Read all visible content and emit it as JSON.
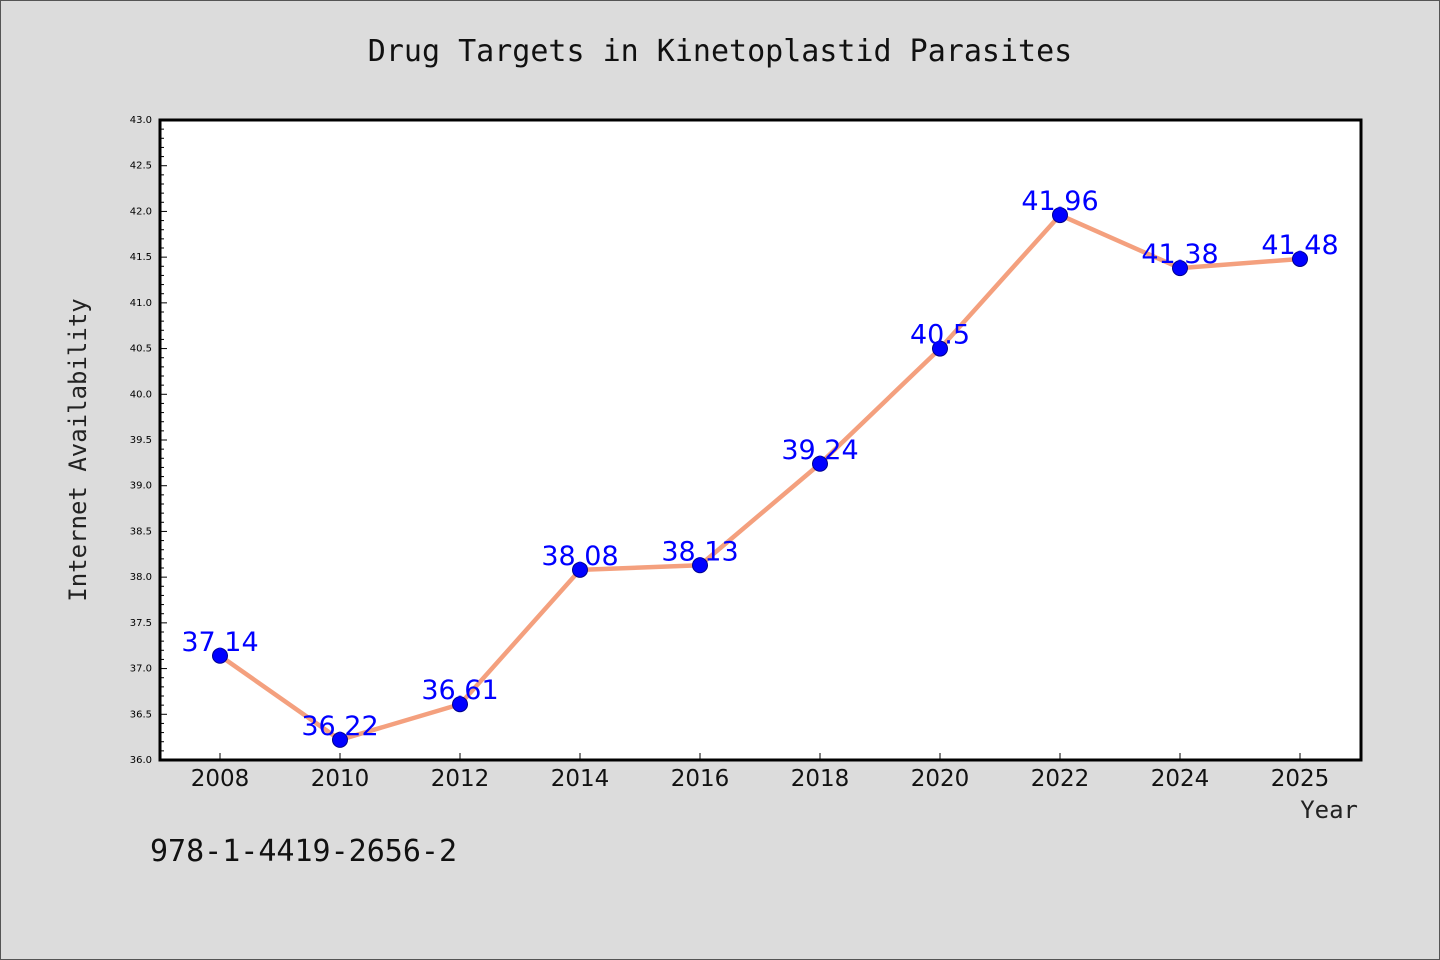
{
  "chart_data": {
    "type": "line",
    "title": "Drug Targets in Kinetoplastid Parasites",
    "xlabel": "Year",
    "ylabel": "Internet Availability",
    "categories": [
      "2008",
      "2010",
      "2012",
      "2014",
      "2016",
      "2018",
      "2020",
      "2022",
      "2024",
      "2025"
    ],
    "values": [
      37.14,
      36.22,
      36.61,
      38.08,
      38.13,
      39.24,
      40.5,
      41.96,
      41.38,
      41.48
    ],
    "data_labels": [
      "37.14",
      "36.22",
      "36.61",
      "38.08",
      "38.13",
      "39.24",
      "40.5",
      "41.96",
      "41.38",
      "41.48"
    ],
    "ylim": [
      36.0,
      43.0
    ],
    "y_ticks": [
      "36.0",
      "36.5",
      "37.0",
      "37.5",
      "38.0",
      "38.5",
      "39.0",
      "39.5",
      "40.0",
      "40.5",
      "41.0",
      "41.5",
      "42.0",
      "42.5",
      "43.0"
    ],
    "grid": false,
    "colors": {
      "line": "#f4a07e",
      "marker": "#0000ff",
      "label": "#0000ff",
      "background": "#dcdcdc",
      "plot_bg": "#ffffff"
    }
  },
  "footer_text": "978-1-4419-2656-2"
}
